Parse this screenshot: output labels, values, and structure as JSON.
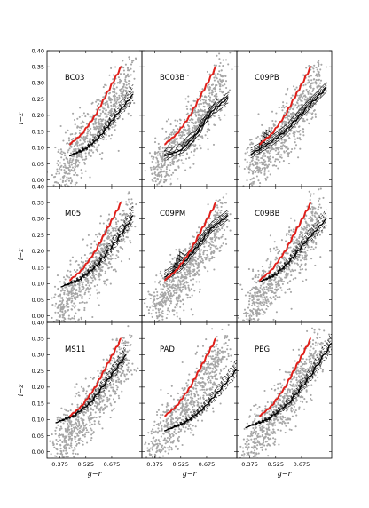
{
  "figure": {
    "xlabel": "g−r",
    "ylabel": "i−z",
    "xticks": [
      "0.375",
      "0.525",
      "0.675"
    ],
    "yticks": [
      "0.00",
      "0.05",
      "0.10",
      "0.15",
      "0.20",
      "0.25",
      "0.30",
      "0.35",
      "0.40"
    ],
    "colors": {
      "points": "#a6a6a6",
      "highlight": "#e0201b",
      "tracks": "#000000"
    }
  },
  "chart_data": [
    {
      "panel": "BC03",
      "type": "scatter",
      "xlim": [
        0.3,
        0.85
      ],
      "ylim": [
        -0.02,
        0.4
      ],
      "red_curve": {
        "x": [
          0.43,
          0.5,
          0.58,
          0.66,
          0.73
        ],
        "y": [
          0.11,
          0.14,
          0.2,
          0.28,
          0.35
        ]
      },
      "black_curve": {
        "x": [
          0.43,
          0.52,
          0.6,
          0.7,
          0.8
        ],
        "y": [
          0.075,
          0.095,
          0.13,
          0.2,
          0.265
        ]
      },
      "track_style": "dashed-bundle"
    },
    {
      "panel": "BC03B",
      "type": "scatter",
      "xlim": [
        0.3,
        0.85
      ],
      "ylim": [
        -0.02,
        0.4
      ],
      "red_curve": {
        "x": [
          0.43,
          0.5,
          0.58,
          0.66,
          0.73
        ],
        "y": [
          0.11,
          0.14,
          0.2,
          0.28,
          0.35
        ]
      },
      "black_curve": {
        "x": [
          0.43,
          0.52,
          0.6,
          0.7,
          0.8
        ],
        "y": [
          0.075,
          0.09,
          0.13,
          0.21,
          0.255
        ]
      },
      "track_style": "noisy"
    },
    {
      "panel": "C09PB",
      "type": "scatter",
      "xlim": [
        0.3,
        0.85
      ],
      "ylim": [
        -0.02,
        0.4
      ],
      "red_curve": {
        "x": [
          0.43,
          0.5,
          0.58,
          0.66,
          0.73
        ],
        "y": [
          0.11,
          0.14,
          0.2,
          0.28,
          0.35
        ]
      },
      "black_curve": {
        "x": [
          0.38,
          0.48,
          0.58,
          0.7,
          0.82
        ],
        "y": [
          0.08,
          0.11,
          0.15,
          0.22,
          0.285
        ]
      },
      "track_style": "kinked"
    },
    {
      "panel": "M05",
      "type": "scatter",
      "xlim": [
        0.3,
        0.85
      ],
      "ylim": [
        -0.02,
        0.4
      ],
      "red_curve": {
        "x": [
          0.43,
          0.5,
          0.58,
          0.66,
          0.73
        ],
        "y": [
          0.11,
          0.14,
          0.2,
          0.28,
          0.35
        ]
      },
      "black_curve": {
        "x": [
          0.38,
          0.48,
          0.58,
          0.7,
          0.8
        ],
        "y": [
          0.09,
          0.11,
          0.15,
          0.23,
          0.31
        ]
      },
      "track_style": "dashed-bundle"
    },
    {
      "panel": "C09PM",
      "type": "scatter",
      "xlim": [
        0.3,
        0.85
      ],
      "ylim": [
        -0.02,
        0.4
      ],
      "red_curve": {
        "x": [
          0.43,
          0.5,
          0.58,
          0.66,
          0.73
        ],
        "y": [
          0.11,
          0.14,
          0.2,
          0.28,
          0.35
        ]
      },
      "black_curve": {
        "x": [
          0.43,
          0.52,
          0.6,
          0.7,
          0.8
        ],
        "y": [
          0.12,
          0.15,
          0.2,
          0.27,
          0.31
        ]
      },
      "track_style": "kinked"
    },
    {
      "panel": "C09BB",
      "type": "scatter",
      "xlim": [
        0.3,
        0.85
      ],
      "ylim": [
        -0.02,
        0.4
      ],
      "red_curve": {
        "x": [
          0.43,
          0.5,
          0.58,
          0.66,
          0.73
        ],
        "y": [
          0.11,
          0.14,
          0.2,
          0.28,
          0.35
        ]
      },
      "black_curve": {
        "x": [
          0.43,
          0.52,
          0.6,
          0.7,
          0.82
        ],
        "y": [
          0.105,
          0.125,
          0.165,
          0.23,
          0.3
        ]
      },
      "track_style": "dashed-bundle"
    },
    {
      "panel": "MS11",
      "type": "scatter",
      "xlim": [
        0.3,
        0.85
      ],
      "ylim": [
        -0.02,
        0.4
      ],
      "red_curve": {
        "x": [
          0.43,
          0.5,
          0.58,
          0.66,
          0.73
        ],
        "y": [
          0.11,
          0.14,
          0.2,
          0.28,
          0.35
        ]
      },
      "black_curve": {
        "x": [
          0.35,
          0.45,
          0.55,
          0.65,
          0.76
        ],
        "y": [
          0.09,
          0.11,
          0.15,
          0.22,
          0.3
        ]
      },
      "track_style": "dashed-bundle"
    },
    {
      "panel": "PAD",
      "type": "scatter",
      "xlim": [
        0.3,
        0.85
      ],
      "ylim": [
        -0.02,
        0.4
      ],
      "red_curve": {
        "x": [
          0.43,
          0.5,
          0.58,
          0.66,
          0.73
        ],
        "y": [
          0.11,
          0.14,
          0.2,
          0.28,
          0.35
        ]
      },
      "black_curve": {
        "x": [
          0.43,
          0.55,
          0.65,
          0.75,
          0.85
        ],
        "y": [
          0.065,
          0.09,
          0.13,
          0.19,
          0.255
        ]
      },
      "track_style": "dashed-bundle"
    },
    {
      "panel": "PEG",
      "type": "scatter",
      "xlim": [
        0.3,
        0.85
      ],
      "ylim": [
        -0.02,
        0.4
      ],
      "red_curve": {
        "x": [
          0.43,
          0.5,
          0.58,
          0.66,
          0.73
        ],
        "y": [
          0.11,
          0.14,
          0.2,
          0.28,
          0.35
        ]
      },
      "black_curve": {
        "x": [
          0.35,
          0.48,
          0.6,
          0.72,
          0.85
        ],
        "y": [
          0.075,
          0.1,
          0.15,
          0.23,
          0.335
        ]
      },
      "track_style": "dashed-bundle"
    }
  ]
}
